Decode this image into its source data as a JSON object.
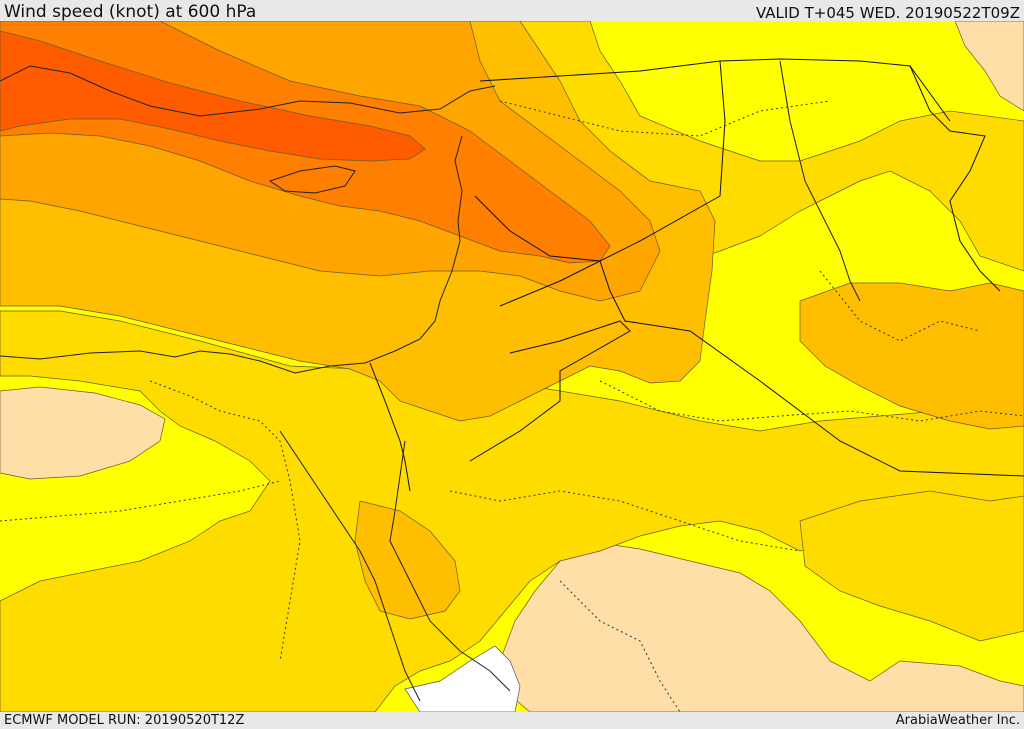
{
  "header": {
    "title": "Wind speed (knot) at 600 hPa",
    "valid_time": "VALID T+045 WED. 20190522T09Z"
  },
  "footer": {
    "model_run": "ECMWF MODEL RUN: 20190520T12Z",
    "credit": "ArabiaWeather Inc."
  },
  "map": {
    "field": "wind speed",
    "level": "600 hPa",
    "unit": "knot",
    "fill_colors": {
      "weakest": "#ffdea8",
      "light": "#ffff00",
      "moderate": "#ffdc00",
      "elevated": "#ffbe00",
      "strong": "#ffa500",
      "stronger": "#ff7f00",
      "strongest": "#ff5c00",
      "missing": "#ffffff"
    }
  }
}
